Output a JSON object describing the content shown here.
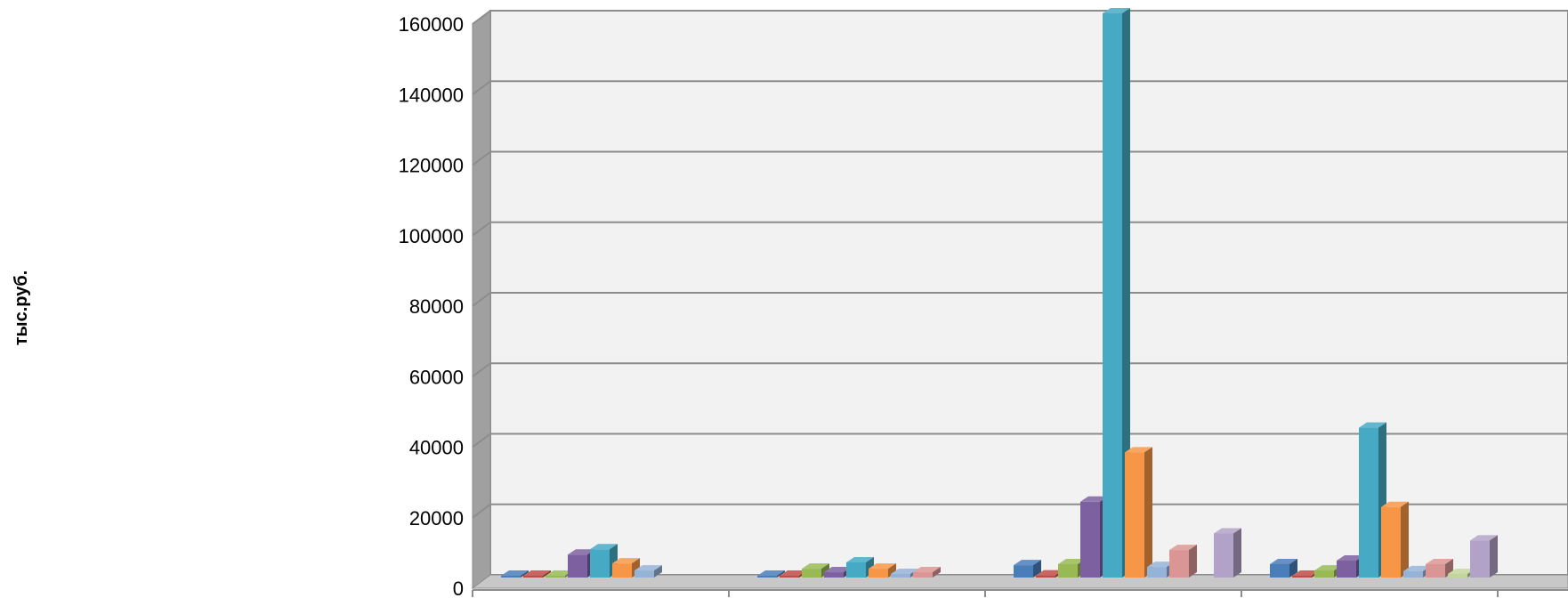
{
  "chart_data": {
    "type": "bar",
    "variant": "3d-clustered-column",
    "ylabel": "тыс.руб.",
    "ylim": [
      0,
      160000
    ],
    "yticks": [
      "0",
      "20000",
      "40000",
      "60000",
      "80000",
      "100000",
      "120000",
      "140000",
      "160000"
    ],
    "grid": true,
    "categories": [
      "",
      "",
      "",
      ""
    ],
    "series": [
      {
        "color": "#4A7EBB",
        "values": [
          200,
          100,
          3500,
          3800
        ]
      },
      {
        "color": "#BE4B48",
        "values": [
          100,
          100,
          600,
          500
        ]
      },
      {
        "color": "#98B954",
        "values": [
          200,
          2500,
          3800,
          2000
        ]
      },
      {
        "color": "#7D60A0",
        "values": [
          6500,
          1500,
          21500,
          4800
        ]
      },
      {
        "color": "#46AAC5",
        "values": [
          8000,
          4300,
          160000,
          42500
        ]
      },
      {
        "color": "#F79646",
        "values": [
          4000,
          2500,
          35500,
          20000
        ]
      },
      {
        "color": "#95B3D7",
        "values": [
          2000,
          1000,
          3000,
          1800
        ]
      },
      {
        "color": "#D99694",
        "values": [
          0,
          1500,
          7800,
          3800
        ]
      },
      {
        "color": "#C3D69B",
        "values": [
          0,
          0,
          0,
          1000
        ]
      },
      {
        "color": "#B3A2C7",
        "values": [
          0,
          0,
          12500,
          10500
        ]
      }
    ]
  }
}
